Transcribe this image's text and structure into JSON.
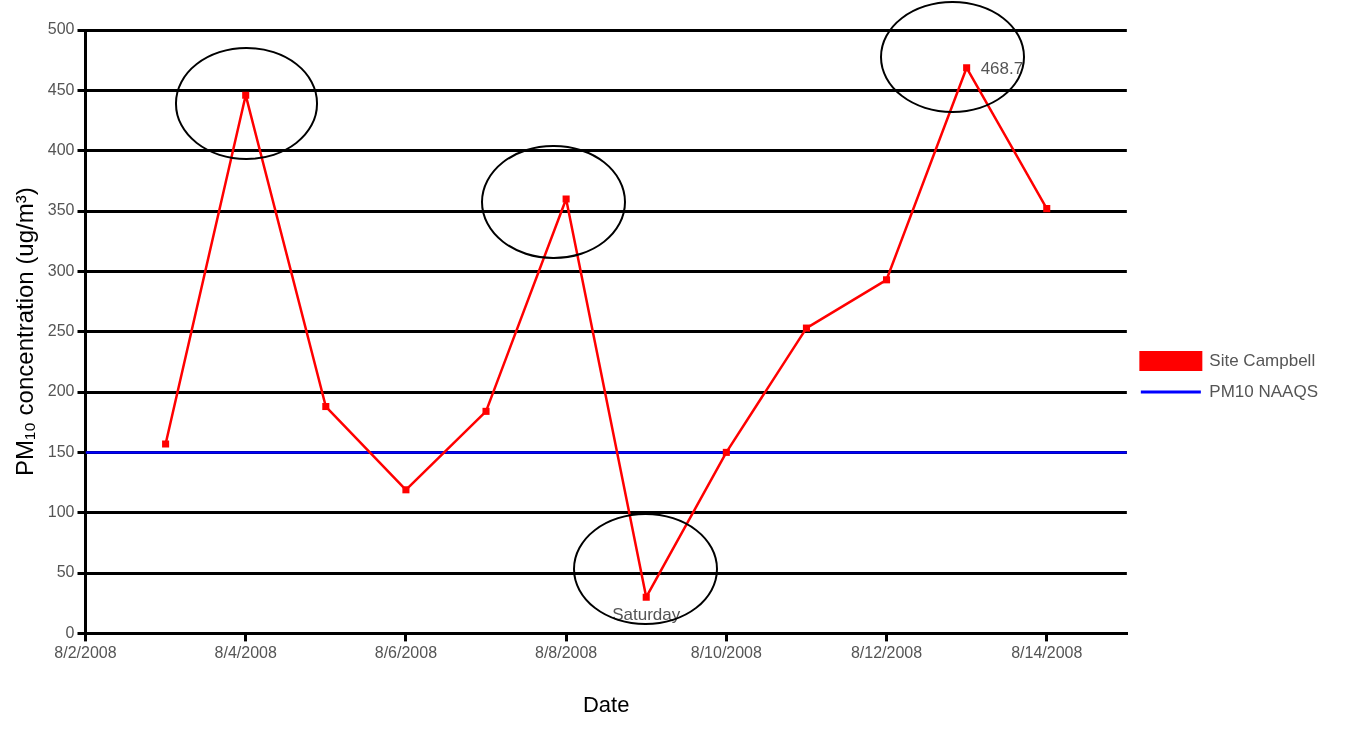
{
  "chart_data": {
    "type": "line",
    "xlabel": "Date",
    "ylabel": "PM₁₀ concentration (ug/m³)",
    "x": [
      "2008-08-03",
      "2008-08-04",
      "2008-08-05",
      "2008-08-06",
      "2008-08-07",
      "2008-08-08",
      "2008-08-09",
      "2008-08-10",
      "2008-08-11",
      "2008-08-12",
      "2008-08-13",
      "2008-08-14"
    ],
    "series": [
      {
        "name": "Site Campbell",
        "color": "#ff0000",
        "marker": "square",
        "values": [
          157,
          446,
          188,
          119,
          184,
          360,
          30,
          150,
          253,
          293,
          468.7,
          352
        ],
        "value_labels": [
          null,
          null,
          null,
          null,
          null,
          null,
          null,
          null,
          null,
          null,
          "468.7",
          null
        ]
      },
      {
        "name": "PM10 NAAQS",
        "color": "#0000ff",
        "marker": "none",
        "x": [
          "2008-08-02",
          "2008-08-15"
        ],
        "values": [
          150,
          150
        ]
      }
    ],
    "xlim": [
      "2008-08-02",
      "2008-08-15"
    ],
    "xticks": [
      {
        "value": "2008-08-02",
        "label": "8/2/2008"
      },
      {
        "value": "2008-08-04",
        "label": "8/4/2008"
      },
      {
        "value": "2008-08-06",
        "label": "8/6/2008"
      },
      {
        "value": "2008-08-08",
        "label": "8/8/2008"
      },
      {
        "value": "2008-08-10",
        "label": "8/10/2008"
      },
      {
        "value": "2008-08-12",
        "label": "8/12/2008"
      },
      {
        "value": "2008-08-14",
        "label": "8/14/2008"
      }
    ],
    "ylim": [
      0,
      500
    ],
    "yticks": [
      0,
      50,
      100,
      150,
      200,
      250,
      300,
      350,
      400,
      450,
      500
    ],
    "grid": "y",
    "legend": "right",
    "annotations": [
      {
        "text": "Saturday",
        "x": "2008-08-09",
        "y": 30
      }
    ]
  }
}
